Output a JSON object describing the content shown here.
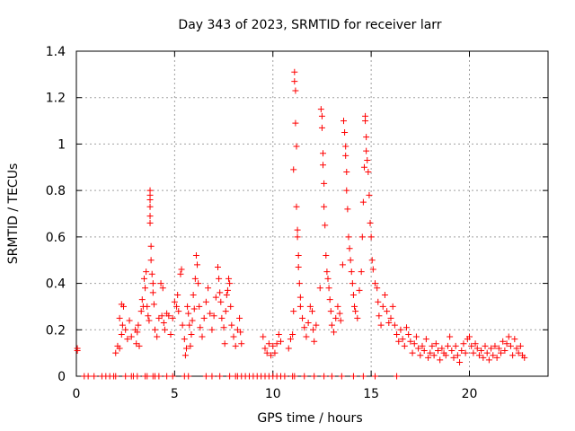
{
  "chart_data": {
    "type": "scatter",
    "title": "Day 343 of 2023, SRMTID for receiver larr",
    "xlabel": "GPS time / hours",
    "ylabel": "SRMTID / TECUs",
    "xlim": [
      0,
      24
    ],
    "ylim": [
      0,
      1.4
    ],
    "xticks": [
      0,
      5,
      10,
      15,
      20
    ],
    "xtick_labels": [
      "0",
      "5",
      "10",
      "15",
      "20"
    ],
    "yticks": [
      0,
      0.2,
      0.4,
      0.6,
      0.8,
      1.0,
      1.2,
      1.4
    ],
    "ytick_labels": [
      "0",
      "0.2",
      "0.4",
      "0.6",
      "0.8",
      "1",
      "1.2",
      "1.4"
    ],
    "grid": true,
    "marker": "plus",
    "color": "#ff0000",
    "series": [
      {
        "name": "SRMTID",
        "points": [
          [
            0.05,
            0.11
          ],
          [
            0.05,
            0.12
          ],
          [
            2.0,
            0.1
          ],
          [
            2.1,
            0.13
          ],
          [
            2.2,
            0.12
          ],
          [
            2.3,
            0.18
          ],
          [
            2.2,
            0.25
          ],
          [
            2.3,
            0.31
          ],
          [
            2.4,
            0.3
          ],
          [
            2.35,
            0.22
          ],
          [
            2.5,
            0.2
          ],
          [
            2.6,
            0.16
          ],
          [
            2.7,
            0.24
          ],
          [
            2.8,
            0.17
          ],
          [
            3.0,
            0.2
          ],
          [
            3.05,
            0.14
          ],
          [
            3.1,
            0.19
          ],
          [
            3.15,
            0.22
          ],
          [
            3.2,
            0.13
          ],
          [
            3.3,
            0.28
          ],
          [
            3.35,
            0.33
          ],
          [
            3.4,
            0.3
          ],
          [
            3.45,
            0.42
          ],
          [
            3.5,
            0.38
          ],
          [
            3.55,
            0.45
          ],
          [
            3.6,
            0.3
          ],
          [
            3.65,
            0.26
          ],
          [
            3.7,
            0.24
          ],
          [
            3.75,
            0.8
          ],
          [
            3.75,
            0.78
          ],
          [
            3.75,
            0.76
          ],
          [
            3.75,
            0.73
          ],
          [
            3.75,
            0.69
          ],
          [
            3.75,
            0.66
          ],
          [
            3.8,
            0.56
          ],
          [
            3.8,
            0.5
          ],
          [
            3.85,
            0.44
          ],
          [
            3.9,
            0.4
          ],
          [
            3.9,
            0.36
          ],
          [
            3.95,
            0.31
          ],
          [
            4.0,
            0.2
          ],
          [
            4.1,
            0.17
          ],
          [
            4.2,
            0.25
          ],
          [
            4.3,
            0.4
          ],
          [
            4.4,
            0.38
          ],
          [
            4.35,
            0.26
          ],
          [
            4.45,
            0.23
          ],
          [
            4.5,
            0.2
          ],
          [
            4.6,
            0.27
          ],
          [
            4.7,
            0.26
          ],
          [
            4.8,
            0.18
          ],
          [
            4.9,
            0.25
          ],
          [
            5.0,
            0.32
          ],
          [
            5.1,
            0.3
          ],
          [
            5.15,
            0.35
          ],
          [
            5.2,
            0.28
          ],
          [
            5.3,
            0.44
          ],
          [
            5.35,
            0.46
          ],
          [
            5.4,
            0.22
          ],
          [
            5.5,
            0.16
          ],
          [
            5.55,
            0.09
          ],
          [
            5.6,
            0.12
          ],
          [
            5.65,
            0.3
          ],
          [
            5.7,
            0.27
          ],
          [
            5.75,
            0.22
          ],
          [
            5.8,
            0.13
          ],
          [
            5.85,
            0.18
          ],
          [
            5.9,
            0.24
          ],
          [
            5.95,
            0.35
          ],
          [
            6.0,
            0.29
          ],
          [
            6.05,
            0.42
          ],
          [
            6.1,
            0.52
          ],
          [
            6.15,
            0.48
          ],
          [
            6.2,
            0.4
          ],
          [
            6.25,
            0.3
          ],
          [
            6.3,
            0.21
          ],
          [
            6.4,
            0.17
          ],
          [
            6.5,
            0.25
          ],
          [
            6.6,
            0.32
          ],
          [
            6.7,
            0.38
          ],
          [
            6.8,
            0.27
          ],
          [
            6.9,
            0.2
          ],
          [
            7.0,
            0.26
          ],
          [
            7.1,
            0.34
          ],
          [
            7.2,
            0.47
          ],
          [
            7.25,
            0.42
          ],
          [
            7.3,
            0.36
          ],
          [
            7.35,
            0.32
          ],
          [
            7.4,
            0.25
          ],
          [
            7.5,
            0.21
          ],
          [
            7.55,
            0.14
          ],
          [
            7.6,
            0.28
          ],
          [
            7.65,
            0.35
          ],
          [
            7.7,
            0.37
          ],
          [
            7.75,
            0.42
          ],
          [
            7.8,
            0.4
          ],
          [
            7.85,
            0.3
          ],
          [
            7.9,
            0.22
          ],
          [
            8.0,
            0.17
          ],
          [
            8.1,
            0.13
          ],
          [
            8.2,
            0.2
          ],
          [
            8.3,
            0.25
          ],
          [
            8.35,
            0.19
          ],
          [
            8.4,
            0.14
          ],
          [
            9.5,
            0.17
          ],
          [
            9.6,
            0.12
          ],
          [
            9.7,
            0.1
          ],
          [
            9.8,
            0.14
          ],
          [
            9.9,
            0.09
          ],
          [
            10.0,
            0.13
          ],
          [
            10.1,
            0.1
          ],
          [
            10.2,
            0.14
          ],
          [
            10.3,
            0.18
          ],
          [
            10.4,
            0.15
          ],
          [
            10.8,
            0.12
          ],
          [
            10.9,
            0.16
          ],
          [
            11.0,
            0.18
          ],
          [
            11.05,
            0.28
          ],
          [
            11.05,
            0.89
          ],
          [
            11.1,
            1.31
          ],
          [
            11.1,
            1.27
          ],
          [
            11.15,
            1.23
          ],
          [
            11.15,
            1.09
          ],
          [
            11.2,
            0.99
          ],
          [
            11.2,
            0.73
          ],
          [
            11.25,
            0.63
          ],
          [
            11.25,
            0.6
          ],
          [
            11.3,
            0.52
          ],
          [
            11.3,
            0.47
          ],
          [
            11.35,
            0.4
          ],
          [
            11.4,
            0.34
          ],
          [
            11.4,
            0.3
          ],
          [
            11.5,
            0.25
          ],
          [
            11.6,
            0.21
          ],
          [
            11.7,
            0.17
          ],
          [
            11.8,
            0.23
          ],
          [
            11.9,
            0.3
          ],
          [
            12.0,
            0.28
          ],
          [
            12.05,
            0.2
          ],
          [
            12.1,
            0.15
          ],
          [
            12.2,
            0.22
          ],
          [
            12.4,
            0.38
          ],
          [
            12.45,
            1.15
          ],
          [
            12.5,
            1.12
          ],
          [
            12.5,
            1.07
          ],
          [
            12.55,
            0.96
          ],
          [
            12.55,
            0.91
          ],
          [
            12.6,
            0.83
          ],
          [
            12.6,
            0.73
          ],
          [
            12.65,
            0.65
          ],
          [
            12.7,
            0.52
          ],
          [
            12.75,
            0.45
          ],
          [
            12.8,
            0.42
          ],
          [
            12.85,
            0.38
          ],
          [
            12.9,
            0.33
          ],
          [
            12.95,
            0.28
          ],
          [
            13.0,
            0.22
          ],
          [
            13.1,
            0.19
          ],
          [
            13.2,
            0.25
          ],
          [
            13.3,
            0.3
          ],
          [
            13.4,
            0.27
          ],
          [
            13.45,
            0.24
          ],
          [
            13.55,
            0.48
          ],
          [
            13.6,
            1.1
          ],
          [
            13.65,
            1.05
          ],
          [
            13.7,
            0.99
          ],
          [
            13.7,
            0.95
          ],
          [
            13.75,
            0.88
          ],
          [
            13.75,
            0.8
          ],
          [
            13.8,
            0.72
          ],
          [
            13.85,
            0.6
          ],
          [
            13.9,
            0.55
          ],
          [
            13.95,
            0.5
          ],
          [
            14.0,
            0.45
          ],
          [
            14.05,
            0.4
          ],
          [
            14.1,
            0.35
          ],
          [
            14.15,
            0.3
          ],
          [
            14.2,
            0.28
          ],
          [
            14.3,
            0.25
          ],
          [
            14.4,
            0.37
          ],
          [
            14.5,
            0.45
          ],
          [
            14.55,
            0.6
          ],
          [
            14.6,
            0.75
          ],
          [
            14.65,
            0.9
          ],
          [
            14.7,
            1.12
          ],
          [
            14.7,
            1.1
          ],
          [
            14.75,
            1.03
          ],
          [
            14.75,
            0.97
          ],
          [
            14.8,
            0.93
          ],
          [
            14.85,
            0.88
          ],
          [
            14.9,
            0.78
          ],
          [
            14.95,
            0.66
          ],
          [
            15.0,
            0.6
          ],
          [
            15.05,
            0.5
          ],
          [
            15.1,
            0.46
          ],
          [
            15.2,
            0.4
          ],
          [
            15.3,
            0.38
          ],
          [
            15.35,
            0.32
          ],
          [
            15.4,
            0.26
          ],
          [
            15.5,
            0.22
          ],
          [
            15.6,
            0.3
          ],
          [
            15.7,
            0.35
          ],
          [
            15.8,
            0.28
          ],
          [
            15.9,
            0.23
          ],
          [
            16.0,
            0.25
          ],
          [
            16.1,
            0.3
          ],
          [
            16.2,
            0.22
          ],
          [
            16.3,
            0.18
          ],
          [
            16.4,
            0.15
          ],
          [
            16.5,
            0.2
          ],
          [
            16.6,
            0.16
          ],
          [
            16.7,
            0.13
          ],
          [
            16.8,
            0.21
          ],
          [
            16.9,
            0.18
          ],
          [
            17.0,
            0.15
          ],
          [
            17.1,
            0.1
          ],
          [
            17.2,
            0.14
          ],
          [
            17.3,
            0.17
          ],
          [
            17.4,
            0.12
          ],
          [
            17.5,
            0.09
          ],
          [
            17.6,
            0.13
          ],
          [
            17.7,
            0.11
          ],
          [
            17.8,
            0.16
          ],
          [
            17.9,
            0.08
          ],
          [
            18.0,
            0.1
          ],
          [
            18.1,
            0.13
          ],
          [
            18.2,
            0.09
          ],
          [
            18.3,
            0.14
          ],
          [
            18.4,
            0.11
          ],
          [
            18.5,
            0.07
          ],
          [
            18.6,
            0.12
          ],
          [
            18.7,
            0.1
          ],
          [
            18.8,
            0.09
          ],
          [
            18.9,
            0.13
          ],
          [
            19.0,
            0.17
          ],
          [
            19.1,
            0.11
          ],
          [
            19.2,
            0.08
          ],
          [
            19.3,
            0.13
          ],
          [
            19.4,
            0.09
          ],
          [
            19.5,
            0.06
          ],
          [
            19.6,
            0.11
          ],
          [
            19.7,
            0.14
          ],
          [
            19.8,
            0.1
          ],
          [
            19.9,
            0.16
          ],
          [
            20.0,
            0.17
          ],
          [
            20.1,
            0.13
          ],
          [
            20.2,
            0.1
          ],
          [
            20.3,
            0.14
          ],
          [
            20.4,
            0.12
          ],
          [
            20.5,
            0.09
          ],
          [
            20.6,
            0.11
          ],
          [
            20.7,
            0.08
          ],
          [
            20.8,
            0.13
          ],
          [
            20.9,
            0.1
          ],
          [
            21.0,
            0.07
          ],
          [
            21.1,
            0.12
          ],
          [
            21.2,
            0.09
          ],
          [
            21.3,
            0.13
          ],
          [
            21.4,
            0.08
          ],
          [
            21.5,
            0.12
          ],
          [
            21.6,
            0.1
          ],
          [
            21.7,
            0.15
          ],
          [
            21.8,
            0.11
          ],
          [
            21.9,
            0.14
          ],
          [
            22.0,
            0.17
          ],
          [
            22.1,
            0.13
          ],
          [
            22.2,
            0.09
          ],
          [
            22.3,
            0.16
          ],
          [
            22.4,
            0.12
          ],
          [
            22.5,
            0.1
          ],
          [
            22.6,
            0.13
          ],
          [
            22.7,
            0.09
          ],
          [
            22.8,
            0.08
          ]
        ]
      }
    ],
    "zero_points_x": [
      0.4,
      0.6,
      0.9,
      1.3,
      1.5,
      1.7,
      1.9,
      2.0,
      2.5,
      2.8,
      2.9,
      3.1,
      3.5,
      3.6,
      3.9,
      4.0,
      4.2,
      4.6,
      4.9,
      5.5,
      5.7,
      6.6,
      6.9,
      7.3,
      7.8,
      8.1,
      8.2,
      8.4,
      8.6,
      8.8,
      9.0,
      9.2,
      9.4,
      9.6,
      9.8,
      10.0,
      10.2,
      10.4,
      10.6,
      11.0,
      11.1,
      11.6,
      12.1,
      12.6,
      13.0,
      13.5,
      14.1,
      14.6,
      15.2,
      16.3
    ]
  }
}
